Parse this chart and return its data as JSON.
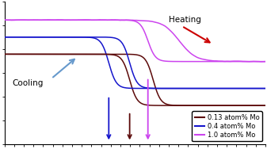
{
  "background_color": "#ffffff",
  "legend_entries": [
    "0.13 atom% Mo",
    "0.4 atom% Mo",
    "1.0 atom% Mo"
  ],
  "colors": {
    "dark_red": "#5c0a0a",
    "dark_blue": "#1515cc",
    "magenta": "#cc44ee"
  },
  "heating_arrow_color": "#cc0000",
  "cooling_arrow_color": "#6699cc",
  "heating_label": "Heating",
  "cooling_label": "Cooling",
  "xlim": [
    0,
    100
  ],
  "ylim": [
    -0.12,
    1.05
  ]
}
